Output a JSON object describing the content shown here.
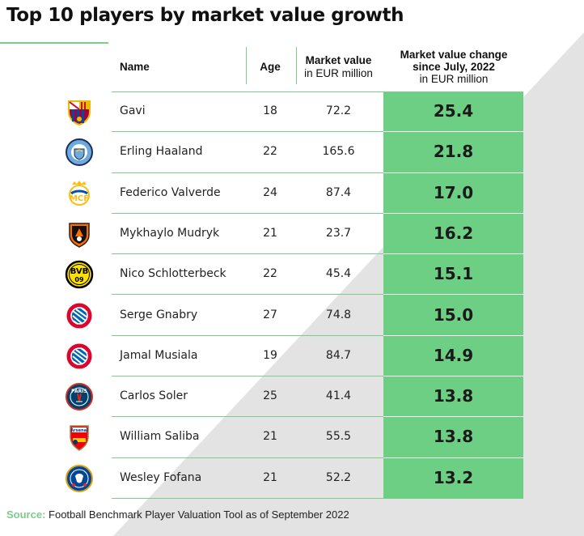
{
  "title": "Top 10 players by market value growth",
  "colors": {
    "accent_green": "#6dcf84",
    "rule_green": "#7ccc8a",
    "background_shade": "#e3e3e3"
  },
  "headers": {
    "name": "Name",
    "age": "Age",
    "market_value": "Market value",
    "market_value_unit": "in EUR million",
    "change_line1": "Market value change",
    "change_line2": "since July, 2022",
    "change_unit": "in EUR million"
  },
  "source": {
    "label": "Source:",
    "text": "Football Benchmark Player Valuation Tool as of September 2022"
  },
  "chart_data": {
    "type": "table",
    "columns": [
      "Name",
      "Age",
      "Market value in EUR million",
      "Market value change since July, 2022 in EUR million"
    ],
    "rows": [
      {
        "club_icon": "fc-barcelona-crest-icon",
        "name": "Gavi",
        "age": "18",
        "market_value": "72.2",
        "change": "25.4"
      },
      {
        "club_icon": "manchester-city-crest-icon",
        "name": "Erling Haaland",
        "age": "22",
        "market_value": "165.6",
        "change": "21.8"
      },
      {
        "club_icon": "real-madrid-crest-icon",
        "name": "Federico Valverde",
        "age": "24",
        "market_value": "87.4",
        "change": "17.0"
      },
      {
        "club_icon": "shakhtar-donetsk-crest-icon",
        "name": "Mykhaylo Mudryk",
        "age": "21",
        "market_value": "23.7",
        "change": "16.2"
      },
      {
        "club_icon": "borussia-dortmund-crest-icon",
        "name": "Nico Schlotterbeck",
        "age": "22",
        "market_value": "45.4",
        "change": "15.1"
      },
      {
        "club_icon": "bayern-munich-crest-icon",
        "name": "Serge Gnabry",
        "age": "27",
        "market_value": "74.8",
        "change": "15.0"
      },
      {
        "club_icon": "bayern-munich-crest-icon",
        "name": "Jamal Musiala",
        "age": "19",
        "market_value": "84.7",
        "change": "14.9"
      },
      {
        "club_icon": "psg-crest-icon",
        "name": "Carlos Soler",
        "age": "25",
        "market_value": "41.4",
        "change": "13.8"
      },
      {
        "club_icon": "arsenal-crest-icon",
        "name": "William Saliba",
        "age": "21",
        "market_value": "55.5",
        "change": "13.8"
      },
      {
        "club_icon": "chelsea-crest-icon",
        "name": "Wesley Fofana",
        "age": "21",
        "market_value": "52.2",
        "change": "13.2"
      }
    ]
  }
}
